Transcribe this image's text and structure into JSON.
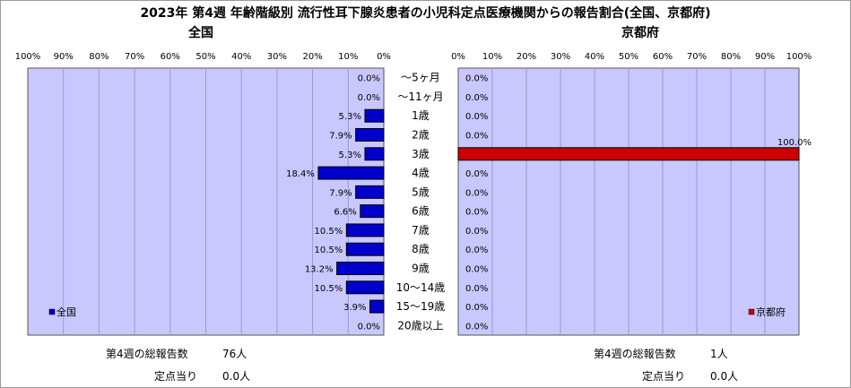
{
  "title": "2023年 第4週 年齢階級別 流行性耳下腺炎患者の小児科定点医療機関からの報告割合(全国、京都府)",
  "chart_data": [
    {
      "type": "bar",
      "orientation": "horizontal",
      "title": "全国",
      "legend": "全国",
      "legend_position": "bottom-left",
      "bar_color": "#0000cc",
      "axis_direction": "reversed",
      "xlim": [
        0,
        100
      ],
      "tick_labels": [
        "0%",
        "10%",
        "20%",
        "30%",
        "40%",
        "50%",
        "60%",
        "70%",
        "80%",
        "90%",
        "100%"
      ],
      "categories": [
        "～5ヶ月",
        "～11ヶ月",
        "1歳",
        "2歳",
        "3歳",
        "4歳",
        "5歳",
        "6歳",
        "7歳",
        "8歳",
        "9歳",
        "10～14歳",
        "15～19歳",
        "20歳以上"
      ],
      "values": [
        0.0,
        0.0,
        5.3,
        7.9,
        5.3,
        18.4,
        7.9,
        6.6,
        10.5,
        10.5,
        13.2,
        10.5,
        3.9,
        0.0
      ],
      "labels": [
        "0.0%",
        "0.0%",
        "5.3%",
        "7.9%",
        "5.3%",
        "18.4%",
        "7.9%",
        "6.6%",
        "10.5%",
        "10.5%",
        "13.2%",
        "10.5%",
        "3.9%",
        "0.0%"
      ],
      "grid": true
    },
    {
      "type": "bar",
      "orientation": "horizontal",
      "title": "京都府",
      "legend": "京都府",
      "legend_position": "bottom-right",
      "bar_color": "#cc0000",
      "xlim": [
        0,
        100
      ],
      "tick_labels": [
        "0%",
        "10%",
        "20%",
        "30%",
        "40%",
        "50%",
        "60%",
        "70%",
        "80%",
        "90%",
        "100%"
      ],
      "categories": [
        "～5ヶ月",
        "～11ヶ月",
        "1歳",
        "2歳",
        "3歳",
        "4歳",
        "5歳",
        "6歳",
        "7歳",
        "8歳",
        "9歳",
        "10～14歳",
        "15～19歳",
        "20歳以上"
      ],
      "values": [
        0.0,
        0.0,
        0.0,
        0.0,
        100.0,
        0.0,
        0.0,
        0.0,
        0.0,
        0.0,
        0.0,
        0.0,
        0.0,
        0.0
      ],
      "labels": [
        "0.0%",
        "0.0%",
        "0.0%",
        "0.0%",
        "100.0%",
        "0.0%",
        "0.0%",
        "0.0%",
        "0.0%",
        "0.0%",
        "0.0%",
        "0.0%",
        "0.0%",
        "0.0%"
      ],
      "grid": true
    }
  ],
  "footer": {
    "national_total_label": "第4週の総報告数",
    "national_total_value": "76人",
    "national_per_site_label": "定点当り",
    "national_per_site_value": "0.0人",
    "kyoto_total_label": "第4週の総報告数",
    "kyoto_total_value": "1人",
    "kyoto_per_site_label": "定点当り",
    "kyoto_per_site_value": "0.0人"
  },
  "colors": {
    "plot_bg": "#c8c8ff",
    "grid": "#9999cc",
    "frame": "#9a9a9a"
  }
}
